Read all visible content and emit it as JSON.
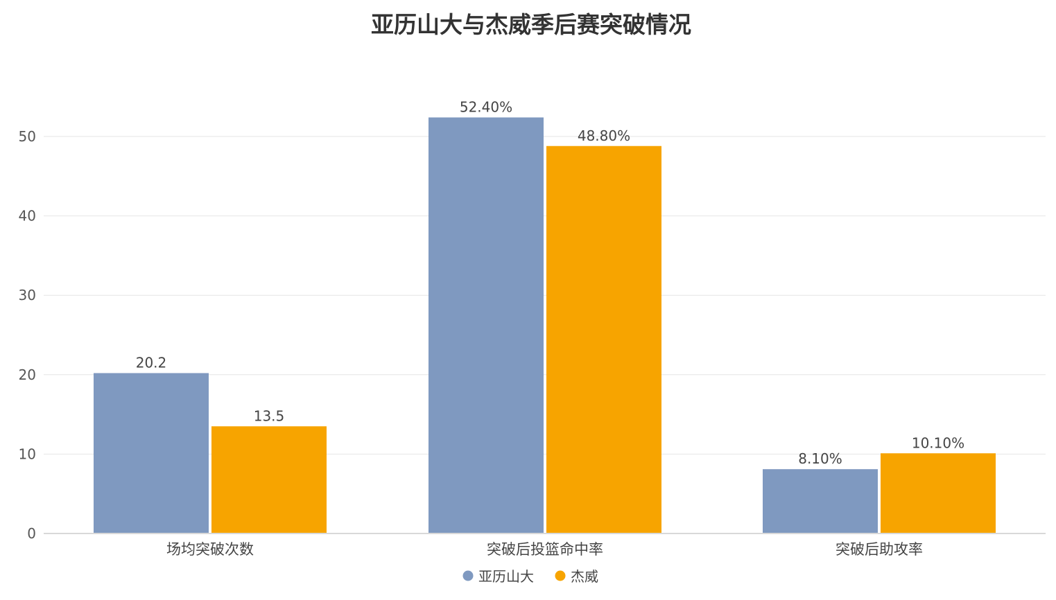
{
  "chart_data": {
    "type": "bar",
    "title": "亚历山大与杰威季后赛突破情况",
    "xlabel": "",
    "ylabel": "",
    "ylim": [
      0,
      55
    ],
    "yticks": [
      0,
      10,
      20,
      30,
      40,
      50
    ],
    "grid": true,
    "legend_position": "bottom-center",
    "categories": [
      "场均突破次数",
      "突破后投篮命中率",
      "突破后助攻率"
    ],
    "series": [
      {
        "name": "亚历山大",
        "color": "#7f99c0",
        "values": [
          20.2,
          52.4,
          8.1
        ],
        "labels": [
          "20.2",
          "52.40%",
          "8.10%"
        ]
      },
      {
        "name": "杰威",
        "color": "#f7a400",
        "values": [
          13.5,
          48.8,
          10.1
        ],
        "labels": [
          "13.5",
          "48.80%",
          "10.10%"
        ]
      }
    ]
  }
}
